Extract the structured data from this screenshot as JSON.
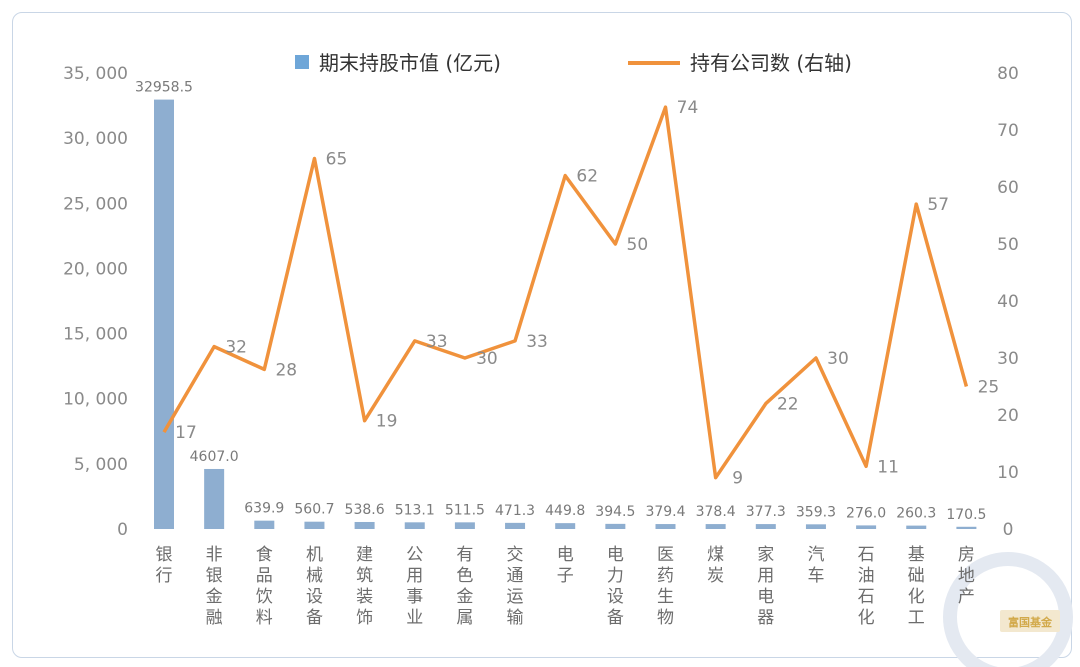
{
  "chart_data": {
    "type": "bar+line",
    "title": "",
    "categories": [
      "银行",
      "非银金融",
      "食品饮料",
      "机械设备",
      "建筑装饰",
      "公用事业",
      "有色金属",
      "交通运输",
      "电子",
      "电力设备",
      "医药生物",
      "煤炭",
      "家用电器",
      "汽车",
      "石油石化",
      "基础化工",
      "房地产"
    ],
    "series": [
      {
        "name": "期末持股市值 (亿元)",
        "type": "bar",
        "axis": "left",
        "values": [
          32958.5,
          4607.0,
          639.9,
          560.7,
          538.6,
          513.1,
          511.5,
          471.3,
          449.8,
          394.5,
          379.4,
          378.4,
          377.3,
          359.3,
          276.0,
          260.3,
          170.5
        ],
        "labels": [
          "32958.5",
          "4607.0",
          "639.9",
          "560.7",
          "538.6",
          "513.1",
          "511.5",
          "471.3",
          "449.8",
          "394.5",
          "379.4",
          "378.4",
          "377.3",
          "359.3",
          "276.0",
          "260.3",
          "170.5"
        ],
        "color": "#8eaed0"
      },
      {
        "name": "持有公司数 (右轴)",
        "type": "line",
        "axis": "right",
        "values": [
          17,
          32,
          28,
          65,
          19,
          33,
          30,
          33,
          62,
          50,
          74,
          9,
          22,
          30,
          11,
          57,
          25
        ],
        "color": "#f0923c"
      }
    ],
    "y_left": {
      "min": 0,
      "max": 35000,
      "ticks": [
        0,
        5000,
        10000,
        15000,
        20000,
        25000,
        30000,
        35000
      ],
      "tick_labels": [
        "0",
        "5, 000",
        "10, 000",
        "15, 000",
        "20, 000",
        "25, 000",
        "30, 000",
        "35, 000"
      ]
    },
    "y_right": {
      "min": 0,
      "max": 80,
      "ticks": [
        0,
        10,
        20,
        30,
        40,
        50,
        60,
        70,
        80
      ],
      "tick_labels": [
        "0",
        "10",
        "20",
        "30",
        "40",
        "50",
        "60",
        "70",
        "80"
      ]
    },
    "legend": {
      "position": "top",
      "bar_color": "#6ea6d8"
    },
    "grid": false
  },
  "watermark": {
    "text": "富国基金",
    "color": "#d2a94a"
  }
}
